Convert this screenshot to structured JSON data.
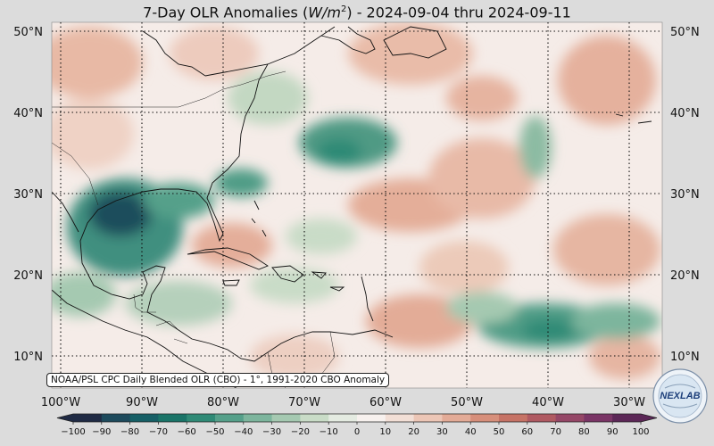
{
  "title": {
    "prefix": "7-Day OLR Anomalies (",
    "unit_var": "W/m",
    "unit_exp": "2",
    "suffix": ") - 2024-09-04 thru 2024-09-11"
  },
  "map": {
    "lat_labels": [
      "50°N",
      "40°N",
      "30°N",
      "20°N",
      "10°N"
    ],
    "lon_labels": [
      "100°W",
      "90°W",
      "80°W",
      "70°W",
      "60°W",
      "50°W",
      "40°W",
      "30°W"
    ]
  },
  "source_note": "NOAA/PSL CPC Daily Blended OLR (CBO) - 1°, 1991-2020 CBO Anomaly",
  "colorbar": {
    "ticks": [
      "−100",
      "−90",
      "−80",
      "−70",
      "−60",
      "−50",
      "−40",
      "−30",
      "−20",
      "−10",
      "0",
      "10",
      "20",
      "30",
      "40",
      "50",
      "60",
      "70",
      "80",
      "90",
      "100"
    ],
    "colors": [
      "#1f2a44",
      "#1d4a5c",
      "#165f66",
      "#1a7468",
      "#2f8a76",
      "#55a08a",
      "#7db59d",
      "#a5c9b1",
      "#c9dcc7",
      "#e4ebe1",
      "#f7f1ee",
      "#f2dfd6",
      "#ecc6b6",
      "#e3ab97",
      "#d78f7b",
      "#c67366",
      "#b05a62",
      "#954767",
      "#7a3566",
      "#5c2757"
    ]
  },
  "logo": {
    "text": "NEXLAB"
  },
  "colors": {
    "background": "#dcdcdc",
    "neutral": "#f7f1ee"
  }
}
